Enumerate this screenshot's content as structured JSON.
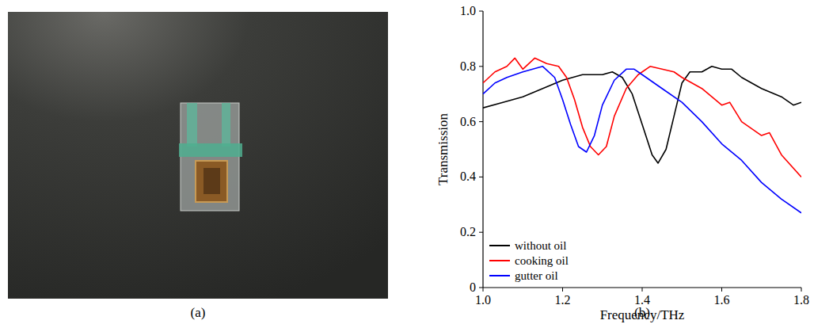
{
  "photo": {
    "label": "(a)"
  },
  "chart_data": {
    "type": "line",
    "panel_label": "(b)",
    "x_label": "Frequency/THz",
    "y_label": "Transmission",
    "xlim": [
      1.0,
      1.8
    ],
    "ylim": [
      0,
      1.0
    ],
    "xticks": [
      {
        "value": 1,
        "label": "1.0"
      },
      1.2,
      1.4,
      1.6,
      1.8
    ],
    "yticks": [
      0,
      0.2,
      0.4,
      0.6,
      0.8,
      {
        "value": 1,
        "label": "1.0"
      }
    ],
    "grid": false,
    "legend": "bottom-left",
    "series": [
      {
        "name": "without oil",
        "color": "#000000",
        "x": [
          1.0,
          1.05,
          1.1,
          1.15,
          1.2,
          1.25,
          1.3,
          1.325,
          1.35,
          1.375,
          1.4,
          1.425,
          1.44,
          1.46,
          1.48,
          1.5,
          1.52,
          1.55,
          1.575,
          1.6,
          1.625,
          1.65,
          1.7,
          1.75,
          1.78,
          1.8
        ],
        "values": [
          0.65,
          0.67,
          0.69,
          0.72,
          0.75,
          0.77,
          0.77,
          0.78,
          0.76,
          0.7,
          0.59,
          0.48,
          0.45,
          0.5,
          0.62,
          0.74,
          0.78,
          0.78,
          0.8,
          0.79,
          0.79,
          0.76,
          0.72,
          0.69,
          0.66,
          0.67
        ]
      },
      {
        "name": "cooking oil",
        "color": "#ff0000",
        "x": [
          1.0,
          1.03,
          1.06,
          1.08,
          1.1,
          1.13,
          1.16,
          1.19,
          1.21,
          1.23,
          1.25,
          1.27,
          1.29,
          1.31,
          1.33,
          1.36,
          1.39,
          1.42,
          1.45,
          1.48,
          1.5,
          1.55,
          1.6,
          1.62,
          1.65,
          1.7,
          1.72,
          1.75,
          1.8
        ],
        "values": [
          0.74,
          0.78,
          0.8,
          0.83,
          0.79,
          0.83,
          0.81,
          0.8,
          0.76,
          0.68,
          0.58,
          0.51,
          0.48,
          0.51,
          0.62,
          0.72,
          0.77,
          0.8,
          0.79,
          0.78,
          0.76,
          0.72,
          0.66,
          0.67,
          0.6,
          0.55,
          0.56,
          0.48,
          0.4
        ]
      },
      {
        "name": "gutter oil",
        "color": "#0000ff",
        "x": [
          1.0,
          1.03,
          1.06,
          1.1,
          1.15,
          1.18,
          1.2,
          1.22,
          1.24,
          1.26,
          1.28,
          1.3,
          1.33,
          1.36,
          1.38,
          1.4,
          1.45,
          1.5,
          1.55,
          1.6,
          1.65,
          1.7,
          1.75,
          1.8
        ],
        "values": [
          0.7,
          0.74,
          0.76,
          0.78,
          0.8,
          0.76,
          0.68,
          0.59,
          0.51,
          0.49,
          0.55,
          0.66,
          0.75,
          0.79,
          0.79,
          0.77,
          0.72,
          0.67,
          0.6,
          0.52,
          0.46,
          0.38,
          0.32,
          0.27
        ]
      }
    ]
  }
}
